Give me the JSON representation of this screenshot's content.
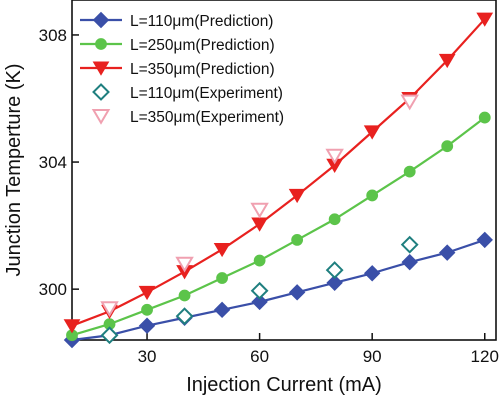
{
  "chart_data": {
    "type": "line",
    "xlabel": "Injection Current (mA)",
    "ylabel": "Junction Temperture (K)",
    "xlim": [
      10,
      123
    ],
    "ylim": [
      298.4,
      309.1
    ],
    "xticks": [
      30,
      60,
      90,
      120
    ],
    "yticks": [
      300,
      304,
      308
    ],
    "grid": false,
    "legend_position": "top-left",
    "series": [
      {
        "name": "L=110μm(Prediction)",
        "color": "#3a4fa8",
        "marker": "diamond",
        "filled": true,
        "line": true,
        "x": [
          10,
          20,
          30,
          40,
          50,
          60,
          70,
          80,
          90,
          100,
          110,
          120
        ],
        "y": [
          298.4,
          298.55,
          298.85,
          299.1,
          299.35,
          299.6,
          299.9,
          300.2,
          300.5,
          300.85,
          301.15,
          301.55
        ]
      },
      {
        "name": "L=250μm(Prediction)",
        "color": "#5cc44a",
        "marker": "circle",
        "filled": true,
        "line": true,
        "x": [
          10,
          20,
          30,
          40,
          50,
          60,
          70,
          80,
          90,
          100,
          110,
          120
        ],
        "y": [
          298.55,
          298.9,
          299.35,
          299.8,
          300.35,
          300.9,
          301.55,
          302.2,
          302.95,
          303.7,
          304.5,
          305.4
        ]
      },
      {
        "name": "L=350μm(Prediction)",
        "color": "#e8211f",
        "marker": "triangle-down",
        "filled": true,
        "line": true,
        "x": [
          10,
          20,
          30,
          40,
          50,
          60,
          70,
          80,
          90,
          100,
          110,
          120
        ],
        "y": [
          298.85,
          299.3,
          299.9,
          300.55,
          301.25,
          302.05,
          302.95,
          303.9,
          304.95,
          306.0,
          307.2,
          308.5
        ]
      },
      {
        "name": "L=110μm(Experiment)",
        "color": "#1f7f7f",
        "marker": "diamond",
        "filled": false,
        "line": false,
        "x": [
          20,
          40,
          60,
          80,
          100
        ],
        "y": [
          298.55,
          299.15,
          299.95,
          300.6,
          301.4
        ]
      },
      {
        "name": "L=350μm(Experiment)",
        "color": "#f0a0b0",
        "marker": "triangle-down",
        "filled": false,
        "line": false,
        "x": [
          20,
          40,
          60,
          80,
          100
        ],
        "y": [
          299.4,
          300.8,
          302.5,
          304.2,
          305.9
        ]
      }
    ]
  }
}
